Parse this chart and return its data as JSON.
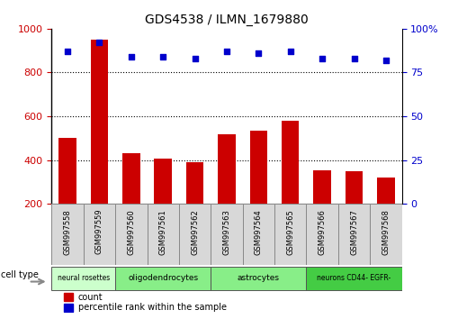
{
  "title": "GDS4538 / ILMN_1679880",
  "samples": [
    "GSM997558",
    "GSM997559",
    "GSM997560",
    "GSM997561",
    "GSM997562",
    "GSM997563",
    "GSM997564",
    "GSM997565",
    "GSM997566",
    "GSM997567",
    "GSM997568"
  ],
  "counts": [
    500,
    950,
    430,
    408,
    390,
    520,
    535,
    580,
    355,
    348,
    320
  ],
  "percentile_ranks": [
    87,
    92,
    84,
    84,
    83,
    87,
    86,
    87,
    83,
    83,
    82
  ],
  "groups": [
    {
      "label": "neural rosettes",
      "start": 0,
      "end": 2,
      "color": "#ccffcc"
    },
    {
      "label": "oligodendrocytes",
      "start": 2,
      "end": 5,
      "color": "#88ee88"
    },
    {
      "label": "astrocytes",
      "start": 5,
      "end": 8,
      "color": "#88ee88"
    },
    {
      "label": "neurons CD44- EGFR-",
      "start": 8,
      "end": 11,
      "color": "#44cc44"
    }
  ],
  "bar_color": "#cc0000",
  "dot_color": "#0000cc",
  "ylim_left": [
    200,
    1000
  ],
  "ylim_right": [
    0,
    100
  ],
  "left_yticks": [
    200,
    400,
    600,
    800,
    1000
  ],
  "right_yticks": [
    0,
    25,
    50,
    75,
    100
  ],
  "background_color": "#ffffff",
  "tick_label_color_left": "#cc0000",
  "tick_label_color_right": "#0000cc",
  "legend_count_label": "count",
  "legend_pct_label": "percentile rank within the sample"
}
